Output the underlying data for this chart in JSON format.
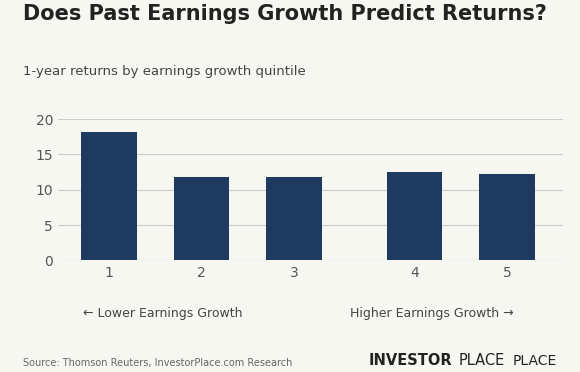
{
  "title": "Does Past Earnings Growth Predict Returns?",
  "subtitle": "1-year returns by earnings growth quintile",
  "categories": [
    "1",
    "2",
    "3",
    "4",
    "5"
  ],
  "values": [
    18.1,
    11.8,
    11.8,
    12.5,
    12.2
  ],
  "bar_color": "#1e3a5f",
  "ylim": [
    0,
    20
  ],
  "yticks": [
    0,
    5,
    10,
    15,
    20
  ],
  "xlabel_left": "← Lower Earnings Growth",
  "xlabel_right": "Higher Earnings Growth →",
  "source_text": "Source: Thomson Reuters, InvestorPlace.com Research",
  "brand_bold": "INVESTOR",
  "brand_normal": "PLACE",
  "background_color": "#f7f7f2",
  "title_fontsize": 15,
  "subtitle_fontsize": 9.5,
  "tick_fontsize": 10,
  "bar_width": 0.6
}
